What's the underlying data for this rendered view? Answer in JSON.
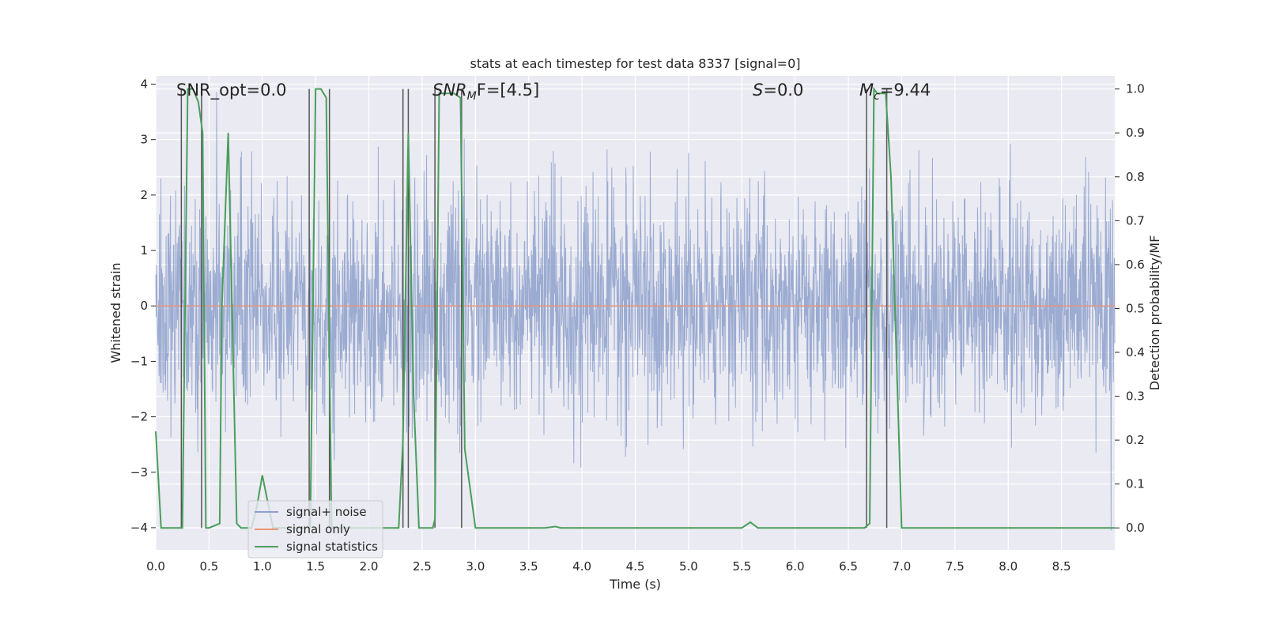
{
  "chart_data": {
    "type": "line",
    "title": "stats at each timestep for test data 8337 [signal=0]",
    "xlabel": "Time (s)",
    "ylabel_left": "Whitened strain",
    "ylabel_right": "Detection probability/MF",
    "xlim": [
      0.0,
      9.0
    ],
    "ylim_left": [
      -4.4,
      4.15
    ],
    "ylim_right": [
      -0.05,
      1.03
    ],
    "x_ticks": [
      "0.0",
      "0.5",
      "1.0",
      "1.5",
      "2.0",
      "2.5",
      "3.0",
      "3.5",
      "4.0",
      "4.5",
      "5.0",
      "5.5",
      "6.0",
      "6.5",
      "7.0",
      "7.5",
      "8.0",
      "8.5"
    ],
    "y_ticks_left": [
      "−4",
      "−3",
      "−2",
      "−1",
      "0",
      "1",
      "2",
      "3",
      "4"
    ],
    "y_ticks_right": [
      "0.0",
      "0.1",
      "0.2",
      "0.3",
      "0.4",
      "0.5",
      "0.6",
      "0.7",
      "0.8",
      "0.9",
      "1.0"
    ],
    "annotations": [
      {
        "name": "snr-opt",
        "text": "SNR_opt=0.0"
      },
      {
        "name": "snr-mf",
        "main": "SNR",
        "sub": "M",
        "rest": "F=[4.5]"
      },
      {
        "name": "s-value",
        "main": "S",
        "rest": "=0.0"
      },
      {
        "name": "chirp-mass",
        "main": "M",
        "sub": "c",
        "rest": "=9.44"
      }
    ],
    "legend": {
      "position": "lower-left",
      "entries": [
        {
          "label": "signal+ noise",
          "color": "#8da0cb"
        },
        {
          "label": "signal only",
          "color": "#e8967a"
        },
        {
          "label": "signal statistics",
          "color": "#4a9e5c"
        }
      ]
    },
    "series": [
      {
        "name": "signal+ noise",
        "kind": "noise",
        "axis": "left",
        "color": "#8da0cb",
        "x_range": [
          0.0,
          9.0
        ],
        "n_samples": 2600,
        "sigma": 1.0
      },
      {
        "name": "signal only",
        "axis": "left",
        "color": "#e8967a",
        "x": [
          0.0,
          9.0
        ],
        "y": [
          0.0,
          0.0
        ]
      },
      {
        "name": "signal statistics",
        "axis": "right",
        "color": "#4a9e5c",
        "x": [
          0.0,
          0.05,
          0.25,
          0.3,
          0.35,
          0.4,
          0.44,
          0.47,
          0.5,
          0.6,
          0.62,
          0.68,
          0.76,
          0.8,
          0.9,
          0.95,
          1.0,
          1.1,
          1.2,
          1.35,
          1.45,
          1.5,
          1.55,
          1.6,
          1.65,
          1.72,
          2.0,
          2.2,
          2.28,
          2.32,
          2.37,
          2.42,
          2.47,
          2.55,
          2.6,
          2.62,
          2.66,
          2.7,
          2.8,
          2.86,
          2.9,
          3.0,
          3.5,
          3.65,
          3.75,
          3.8,
          4.0,
          5.0,
          5.5,
          5.58,
          5.65,
          6.0,
          6.5,
          6.65,
          6.7,
          6.74,
          6.77,
          6.85,
          6.9,
          7.0,
          7.05,
          7.5,
          8.0,
          8.5,
          9.0
        ],
        "y": [
          0.22,
          0.0,
          0.0,
          1.0,
          1.0,
          0.97,
          0.9,
          0.0,
          0.0,
          0.01,
          0.5,
          0.9,
          0.01,
          0.0,
          0.0,
          0.05,
          0.12,
          0.0,
          0.0,
          0.0,
          0.0,
          1.0,
          1.0,
          0.98,
          0.0,
          0.0,
          0.0,
          0.0,
          0.0,
          0.2,
          0.9,
          0.3,
          0.0,
          0.0,
          0.0,
          0.02,
          0.99,
          0.99,
          0.99,
          0.98,
          0.18,
          0.0,
          0.0,
          0.0,
          0.003,
          0.0,
          0.0,
          0.0,
          0.0,
          0.013,
          0.0,
          0.0,
          0.0,
          0.0,
          0.01,
          1.0,
          0.99,
          0.99,
          0.8,
          0.0,
          0.0,
          0.0,
          0.0,
          0.0,
          0.0
        ]
      }
    ],
    "vlines": [
      0.24,
      0.43,
      1.44,
      1.63,
      2.32,
      2.37,
      2.62,
      2.87,
      6.67,
      6.86
    ]
  }
}
